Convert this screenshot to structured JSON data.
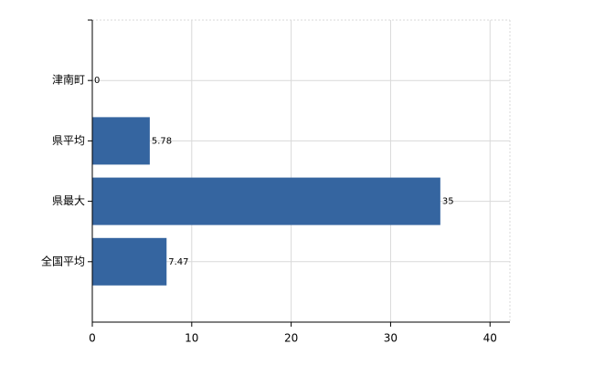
{
  "chart_data": {
    "type": "bar",
    "orientation": "horizontal",
    "categories": [
      "津南町",
      "県平均",
      "県最大",
      "全国平均"
    ],
    "values": [
      0,
      5.78,
      35,
      7.47
    ],
    "color": "#3565a0",
    "xlim": [
      0,
      42
    ],
    "xticks": [
      0,
      10,
      20,
      30,
      40
    ],
    "grid": true
  }
}
